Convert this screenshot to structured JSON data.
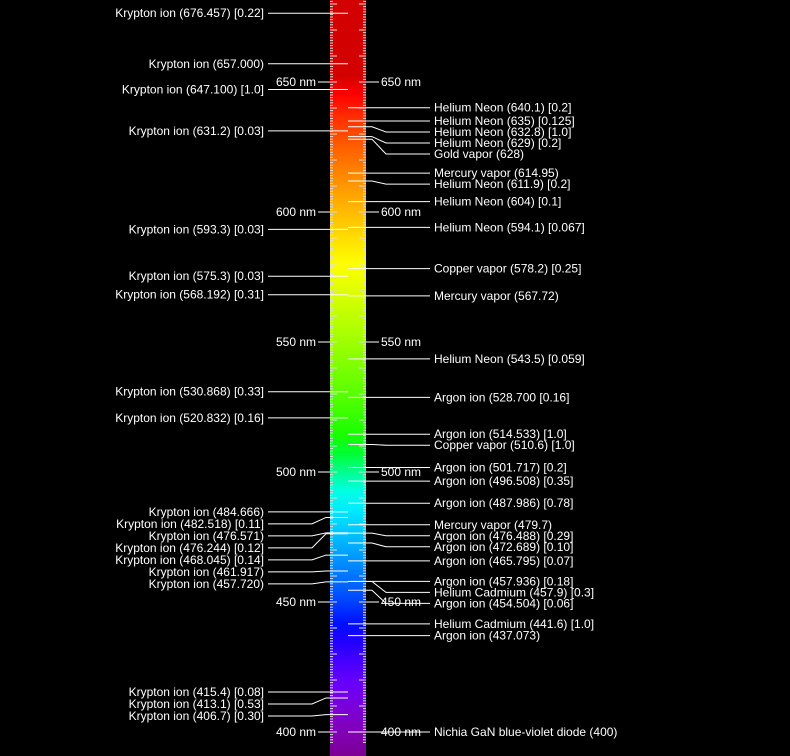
{
  "chart_data": {
    "type": "diagram",
    "unit_suffix": " nm",
    "wavelength_range": [
      396,
      682
    ],
    "scale_labels": [
      650,
      600,
      550,
      500,
      450,
      400
    ],
    "left_lines": [
      {
        "label": "Krypton ion (676.457) [0.22]",
        "wl": 676.457
      },
      {
        "label": "Krypton ion (657.000)",
        "wl": 657.0
      },
      {
        "label": "Krypton ion (647.100) [1.0]",
        "wl": 647.1
      },
      {
        "label": "Krypton ion (631.2) [0.03]",
        "wl": 631.2
      },
      {
        "label": "Krypton ion (593.3) [0.03]",
        "wl": 593.3
      },
      {
        "label": "Krypton ion (575.3) [0.03]",
        "wl": 575.3
      },
      {
        "label": "Krypton ion (568.192) [0.31]",
        "wl": 568.192
      },
      {
        "label": "Krypton ion (530.868) [0.33]",
        "wl": 530.868
      },
      {
        "label": "Krypton ion (520.832) [0.16]",
        "wl": 520.832
      },
      {
        "label": "Krypton ion (484.666)",
        "wl": 484.666
      },
      {
        "label": "Krypton ion (482.518) [0.11]",
        "wl": 482.518
      },
      {
        "label": "Krypton ion (476.571)",
        "wl": 476.571
      },
      {
        "label": "Krypton ion (476.244) [0.12]",
        "wl": 476.244
      },
      {
        "label": "Krypton ion (468.045) [0.14]",
        "wl": 468.045
      },
      {
        "label": "Krypton ion (461.917)",
        "wl": 461.917
      },
      {
        "label": "Krypton ion (457.720)",
        "wl": 457.72
      },
      {
        "label": "Krypton ion (415.4) [0.08]",
        "wl": 415.4
      },
      {
        "label": "Krypton ion (413.1) [0.53]",
        "wl": 413.1
      },
      {
        "label": "Krypton ion (406.7) [0.30]",
        "wl": 406.7
      }
    ],
    "right_lines": [
      {
        "label": "Helium Neon (640.1) [0.2]",
        "wl": 640.1
      },
      {
        "label": "Helium Neon (635) [0.125]",
        "wl": 635
      },
      {
        "label": "Helium Neon (632.8) [1.0]",
        "wl": 632.8
      },
      {
        "label": "Helium Neon (629) [0.2]",
        "wl": 629
      },
      {
        "label": "Gold vapor (628)",
        "wl": 628
      },
      {
        "label": "Mercury vapor (614.95)",
        "wl": 614.95
      },
      {
        "label": "Helium Neon (611.9) [0.2]",
        "wl": 611.9
      },
      {
        "label": "Helium Neon (604) [0.1]",
        "wl": 604
      },
      {
        "label": "Helium Neon (594.1) [0.067]",
        "wl": 594.1
      },
      {
        "label": "Copper vapor (578.2) [0.25]",
        "wl": 578.2
      },
      {
        "label": "Mercury vapor (567.72)",
        "wl": 567.72
      },
      {
        "label": "Helium Neon (543.5) [0.059]",
        "wl": 543.5
      },
      {
        "label": "Argon ion (528.700 [0.16]",
        "wl": 528.7
      },
      {
        "label": "Argon ion (514.533) [1.0]",
        "wl": 514.533
      },
      {
        "label": "Copper vapor (510.6) [1.0]",
        "wl": 510.6
      },
      {
        "label": "Argon ion (501.717) [0.2]",
        "wl": 501.717
      },
      {
        "label": "Argon ion (496.508) [0.35]",
        "wl": 496.508
      },
      {
        "label": "Argon ion (487.986) [0.78]",
        "wl": 487.986
      },
      {
        "label": "Mercury vapor (479.7)",
        "wl": 479.7
      },
      {
        "label": "Argon ion (476.488) [0.29]",
        "wl": 476.488
      },
      {
        "label": "Argon ion (472.689) [0.10]",
        "wl": 472.689
      },
      {
        "label": "Argon ion (465.795) [0.07]",
        "wl": 465.795
      },
      {
        "label": "Argon ion (457.936) [0.18]",
        "wl": 457.936
      },
      {
        "label": "Helium Cadmium (457.9) [0.3]",
        "wl": 457.9
      },
      {
        "label": "Argon ion (454.504) [0.06]",
        "wl": 454.504
      },
      {
        "label": "Helium Cadmium (441.6) [1.0]",
        "wl": 441.6
      },
      {
        "label": "Argon ion (437.073)",
        "wl": 437.073
      },
      {
        "label": "Nichia GaN blue-violet diode (400)",
        "wl": 400
      }
    ]
  }
}
